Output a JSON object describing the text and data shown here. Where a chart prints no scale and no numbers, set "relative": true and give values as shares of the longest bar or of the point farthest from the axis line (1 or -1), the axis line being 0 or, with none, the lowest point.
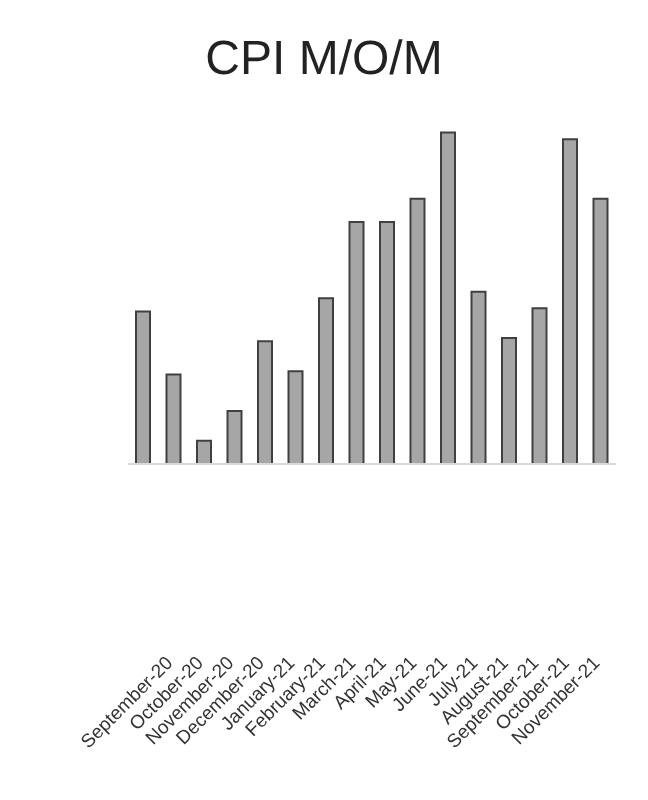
{
  "chart_data": {
    "type": "bar",
    "title": "CPI M/O/M",
    "relative": true,
    "color": "#a6a6a6",
    "categories": [
      null,
      "September-20",
      "October-20",
      "November-20",
      "December-20",
      "January-21",
      "February-21",
      "March-21",
      "April-21",
      "May-21",
      "June-21",
      "July-21",
      "August-21",
      "September-21",
      "October-21",
      "November-21"
    ],
    "values": [
      0.46,
      0.27,
      0.07,
      0.16,
      0.37,
      0.28,
      0.5,
      0.73,
      0.73,
      0.8,
      1,
      0.52,
      0.38,
      0.47,
      0.98,
      0.8
    ],
    "grid": false,
    "legend": false
  }
}
